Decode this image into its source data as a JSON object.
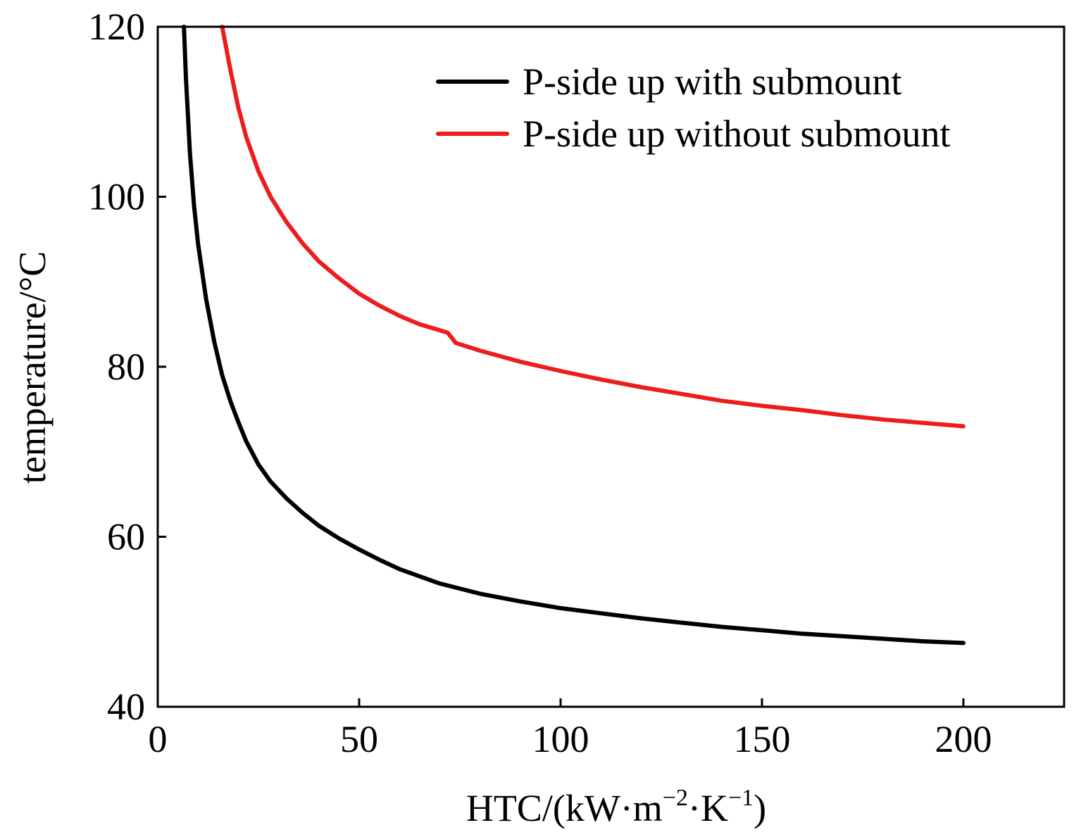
{
  "chart_data": {
    "type": "line",
    "title": "",
    "xlabel": {
      "main": "HTC/(kW·m",
      "sup1": "−2",
      "mid": "·K",
      "sup2": "−1",
      "end": ")"
    },
    "ylabel": "temperature/°C",
    "xlim": [
      0,
      225
    ],
    "ylim": [
      40,
      120
    ],
    "xticks": [
      0,
      50,
      100,
      150,
      200
    ],
    "yticks": [
      40,
      60,
      80,
      100,
      120
    ],
    "grid": false,
    "legend_position": "top-right",
    "series": [
      {
        "name": "P-side up with submount",
        "color": "#000000",
        "x": [
          6.5,
          7,
          8,
          9,
          10,
          12,
          14,
          16,
          18,
          20,
          22,
          25,
          28,
          32,
          36,
          40,
          45,
          50,
          55,
          60,
          70,
          80,
          90,
          100,
          110,
          120,
          130,
          140,
          150,
          160,
          170,
          180,
          190,
          200
        ],
        "y": [
          120,
          114,
          105,
          99,
          94.5,
          88,
          83,
          79,
          76,
          73.5,
          71.2,
          68.5,
          66.5,
          64.5,
          62.8,
          61.3,
          59.8,
          58.5,
          57.3,
          56.2,
          54.5,
          53.3,
          52.4,
          51.6,
          51.0,
          50.4,
          49.9,
          49.4,
          49.0,
          48.6,
          48.3,
          48.0,
          47.7,
          47.5
        ]
      },
      {
        "name": "P-side up without submount",
        "color": "#ee1c1c",
        "x": [
          16,
          18,
          20,
          22,
          25,
          28,
          32,
          36,
          40,
          45,
          50,
          55,
          60,
          65,
          70,
          72,
          74,
          80,
          90,
          100,
          110,
          120,
          130,
          140,
          150,
          160,
          170,
          180,
          190,
          200
        ],
        "y": [
          120,
          115,
          110.5,
          107,
          103,
          100,
          97,
          94.5,
          92.4,
          90.4,
          88.6,
          87.2,
          86,
          85,
          84.3,
          84,
          82.8,
          81.9,
          80.6,
          79.5,
          78.5,
          77.6,
          76.8,
          76.0,
          75.4,
          74.9,
          74.3,
          73.8,
          73.4,
          73.0
        ]
      }
    ]
  }
}
